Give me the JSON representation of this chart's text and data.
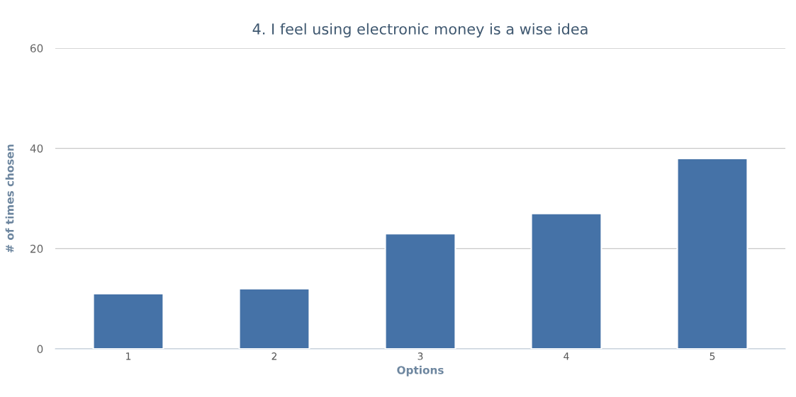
{
  "chart_data": {
    "type": "bar",
    "title": "4. I feel using electronic money is a wise idea",
    "xlabel": "Options",
    "ylabel": "# of times chosen",
    "categories": [
      "1",
      "2",
      "3",
      "4",
      "5"
    ],
    "values": [
      11,
      12,
      23,
      27,
      38
    ],
    "color": "#4572a7",
    "ylim": [
      0,
      60
    ],
    "yticks": [
      0,
      20,
      40,
      60
    ],
    "grid": "y"
  }
}
